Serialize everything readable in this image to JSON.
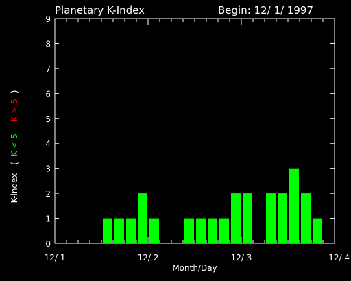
{
  "chart_data": {
    "type": "bar",
    "title": "Planetary K-Index",
    "begin_label": "Begin: 12/ 1/ 1997",
    "xlabel": "Month/Day",
    "ylabel": {
      "prefix": "K-index",
      "open": "(",
      "low_label": "K < 5",
      "high_label": "K > 5",
      "close": ")"
    },
    "ylim": [
      0,
      9
    ],
    "y_ticks": [
      "0",
      "1",
      "2",
      "3",
      "4",
      "5",
      "6",
      "7",
      "8",
      "9"
    ],
    "x_ticks": [
      {
        "day": 0,
        "label": "12/ 1"
      },
      {
        "day": 1,
        "label": "12/ 2"
      },
      {
        "day": 2,
        "label": "12/ 3"
      },
      {
        "day": 3,
        "label": "12/ 4"
      }
    ],
    "bins_per_day": 8,
    "values": [
      0,
      0,
      0,
      0,
      1,
      1,
      1,
      2,
      1,
      0,
      0,
      1,
      1,
      1,
      1,
      2,
      2,
      0,
      2,
      2,
      3,
      2,
      1,
      0
    ],
    "colors": {
      "low": "#00ff00",
      "high": "#ff0000",
      "axes": "#ffffff",
      "background": "#000000"
    },
    "grid": false
  }
}
